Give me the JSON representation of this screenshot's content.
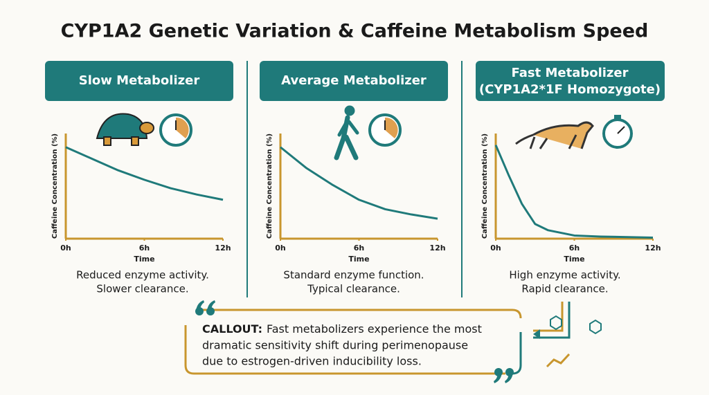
{
  "title": "CYP1A2 Genetic Variation & Caffeine Metabolism Speed",
  "panels": [
    {
      "header": "Slow Metabolizer",
      "caption": [
        "Reduced enzyme activity.",
        "Slower clearance."
      ]
    },
    {
      "header": "Average Metabolizer",
      "caption": [
        "Standard enzyme function.",
        "Typical clearance."
      ]
    },
    {
      "header": "Fast Metabolizer",
      "subheader": "(CYP1A2*1F Homozygote)",
      "caption": [
        "High enzyme activity.",
        "Rapid clearance."
      ]
    }
  ],
  "callout": {
    "label": "CALLOUT:",
    "lines": [
      "Fast metabolizers experience the most",
      "dramatic sensitivity shift during perimenopause",
      "due to estrogen-driven inducibility loss."
    ]
  },
  "chart_data": [
    {
      "type": "line",
      "y_label": "Caffeine Concentration (%)",
      "x_label": "Time",
      "color": "#1f7a7a",
      "axis_color": "#c8962e",
      "x": [
        0,
        2,
        4,
        6,
        8,
        10,
        12
      ],
      "values": [
        87,
        76,
        65,
        56,
        48,
        42,
        37
      ],
      "xlim": [
        0,
        12
      ],
      "xticks": [
        {
          "value": 0,
          "label": "0h"
        },
        {
          "value": 6,
          "label": "6h"
        },
        {
          "value": 12,
          "label": "12h"
        }
      ],
      "ylim": [
        0,
        100
      ]
    },
    {
      "type": "line",
      "y_label": "Caffeine Concentration (%)",
      "x_label": "Time",
      "color": "#1f7a7a",
      "axis_color": "#c8962e",
      "x": [
        0,
        2,
        4,
        6,
        8,
        10,
        12
      ],
      "values": [
        87,
        67,
        51,
        37,
        28,
        23,
        19
      ],
      "xlim": [
        0,
        12
      ],
      "xticks": [
        {
          "value": 0,
          "label": "0h"
        },
        {
          "value": 6,
          "label": "6h"
        },
        {
          "value": 12,
          "label": "12h"
        }
      ],
      "ylim": [
        0,
        100
      ]
    },
    {
      "type": "line",
      "y_label": "Caffeine Concentration (%)",
      "x_label": "Time",
      "color": "#1f7a7a",
      "axis_color": "#c8962e",
      "x": [
        0,
        1,
        2,
        3,
        4,
        6,
        8,
        12
      ],
      "values": [
        89,
        60,
        33,
        14,
        8,
        3,
        2,
        1
      ],
      "xlim": [
        0,
        12
      ],
      "xticks": [
        {
          "value": 0,
          "label": "0h"
        },
        {
          "value": 6,
          "label": "6h"
        },
        {
          "value": 12,
          "label": "12h"
        }
      ],
      "ylim": [
        0,
        100
      ]
    }
  ]
}
